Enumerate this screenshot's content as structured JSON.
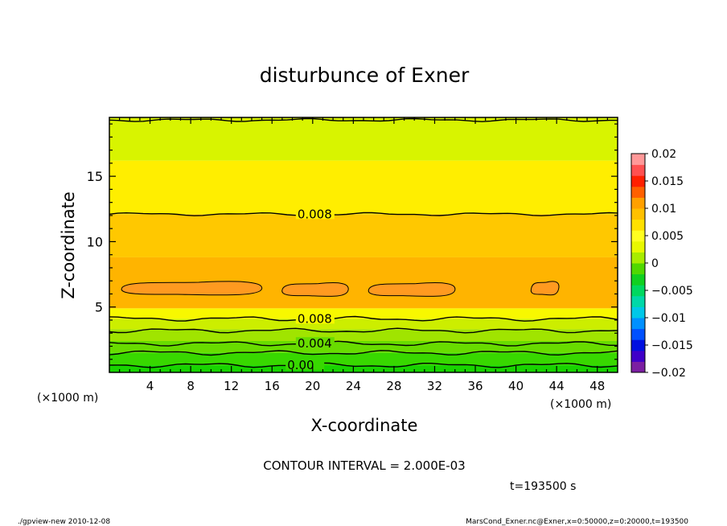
{
  "chart_data": {
    "type": "heatmap",
    "title": "disturbunce of Exner",
    "xlabel": "X-coordinate",
    "ylabel": "Z-coordinate",
    "x_unit_left": "(×1000 m)",
    "x_unit_right": "(×1000 m)",
    "xlim": [
      0,
      50
    ],
    "ylim": [
      0,
      19.5
    ],
    "xticks": [
      "4",
      "8",
      "12",
      "16",
      "20",
      "24",
      "28",
      "32",
      "36",
      "40",
      "44",
      "48"
    ],
    "yticks": [
      "5",
      "10",
      "15"
    ],
    "colorbar": {
      "ticks": [
        "0.02",
        "0.015",
        "0.01",
        "0.005",
        "0",
        "−0.005",
        "−0.01",
        "−0.015",
        "−0.02"
      ],
      "range": [
        -0.02,
        0.02
      ],
      "colors": [
        "#7b1fa2",
        "#3f00c8",
        "#0010e0",
        "#0050ff",
        "#0090ff",
        "#00c8e8",
        "#00d8a8",
        "#00d860",
        "#10d020",
        "#50d800",
        "#a8ec00",
        "#e8f800",
        "#ffff20",
        "#ffe000",
        "#ffc000",
        "#ffa000",
        "#ff6000",
        "#ff2000",
        "#ff5050",
        "#ff9898"
      ]
    },
    "bands": [
      {
        "z0": 0.0,
        "z1": 0.55,
        "color": "#18d400"
      },
      {
        "z0": 0.55,
        "z1": 1.5,
        "color": "#38d800"
      },
      {
        "z0": 1.5,
        "z1": 2.4,
        "color": "#68dc00"
      },
      {
        "z0": 2.4,
        "z1": 3.3,
        "color": "#a0e400"
      },
      {
        "z0": 3.3,
        "z1": 4.1,
        "color": "#ccee00"
      },
      {
        "z0": 4.1,
        "z1": 4.9,
        "color": "#f8f800"
      },
      {
        "z0": 4.9,
        "z1": 8.8,
        "color": "#ffb400"
      },
      {
        "z0": 8.8,
        "z1": 12.1,
        "color": "#ffc800"
      },
      {
        "z0": 12.1,
        "z1": 16.2,
        "color": "#ffee00"
      },
      {
        "z0": 16.2,
        "z1": 19.5,
        "color": "#d8f400"
      }
    ],
    "contours": [
      {
        "label": "0.008",
        "z": 12.1,
        "label_x": 18.5
      },
      {
        "label": "0.008",
        "z": 4.1,
        "label_x": 18.5
      },
      {
        "label": "0.004",
        "z": 2.2,
        "label_x": 18.5
      },
      {
        "label": "0.00",
        "z": 0.55,
        "label_x": 17.5
      },
      {
        "label": "",
        "z": 19.3,
        "label_x": null
      },
      {
        "label": "",
        "z": 3.2,
        "label_x": null
      },
      {
        "label": "",
        "z": 1.5,
        "label_x": null
      }
    ],
    "blobs": [
      {
        "x0": 1.2,
        "x1": 15,
        "z": 6.4
      },
      {
        "x0": 17,
        "x1": 23.5,
        "z": 6.3
      },
      {
        "x0": 25.5,
        "x1": 34,
        "z": 6.3
      },
      {
        "x0": 41.5,
        "x1": 44.2,
        "z": 6.4
      }
    ]
  },
  "annotations": {
    "contour_interval": "CONTOUR INTERVAL = 2.000E-03",
    "time": "t=193500 s",
    "footer_left": "./gpview-new  2010-12-08",
    "footer_right": "MarsCond_Exner.nc@Exner,x=0:50000,z=0:20000,t=193500"
  }
}
